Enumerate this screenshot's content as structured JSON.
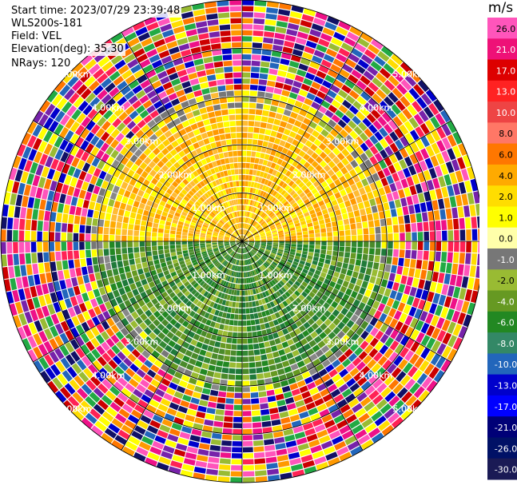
{
  "header": {
    "start_time": "Start time: 2023/07/29 23:39:48",
    "instrument": "WLS200s-181",
    "field": "Field: VEL",
    "elevation": "Elevation(deg): 35.30",
    "nrays": "NRays: 120"
  },
  "chart_data": {
    "type": "heatmap",
    "projection": "polar-ppi",
    "field": "VEL",
    "units": "m/s",
    "nrays": 120,
    "max_range_km": 5.0,
    "grid": true,
    "range_rings_km": [
      1.0,
      2.0,
      3.0,
      4.0,
      5.0
    ],
    "ring_labels": [
      "1.00km",
      "2.00km",
      "3.00km",
      "4.00km",
      "5.00km"
    ],
    "colorbar": {
      "unit_label": "m/s",
      "ticks": [
        "26.0",
        "21.0",
        "17.0",
        "13.0",
        "10.0",
        "8.0",
        "6.0",
        "4.0",
        "2.0",
        "1.0",
        "0.0",
        "-1.0",
        "-2.0",
        "-4.0",
        "-6.0",
        "-8.0",
        "-10.0",
        "-13.0",
        "-17.0",
        "-21.0",
        "-26.0",
        "-30.0"
      ],
      "colors": [
        "#ff55bb",
        "#ee1177",
        "#dd0000",
        "#ff2222",
        "#ee4444",
        "#ff7766",
        "#ff7700",
        "#ffaa00",
        "#ffdd00",
        "#ffff00",
        "#ffffaa",
        "#777777",
        "#99bb33",
        "#669922",
        "#228822",
        "#338866",
        "#2266bb",
        "#0000cc",
        "#0000ff",
        "#000077",
        "#001166",
        "#1a1a55"
      ]
    },
    "sector_colors": {
      "outer_noise": [
        "#ff2255",
        "#ee1188",
        "#ffdd00",
        "#0000cc",
        "#22aa44",
        "#ff7700",
        "#7722aa",
        "#ff55bb",
        "#111166",
        "#ffff00",
        "#cc0000",
        "#2266bb",
        "#99bb33",
        "#ff9900"
      ],
      "north_inner": [
        "#ffaa00",
        "#ffcc00",
        "#ffdd00",
        "#ffff00",
        "#ff9900",
        "#ffbb33"
      ],
      "south_inner": [
        "#228822",
        "#669922",
        "#338833",
        "#99bb33",
        "#1f7a3a",
        "#4a8a2a"
      ],
      "fringe": [
        "#777777",
        "#888888",
        "#ffff00",
        "#99bb33"
      ]
    }
  }
}
